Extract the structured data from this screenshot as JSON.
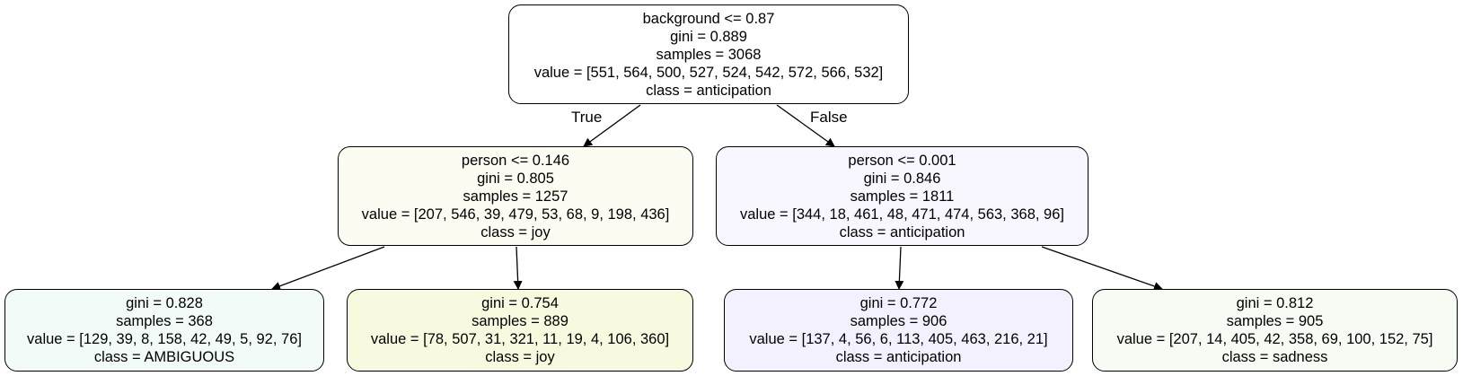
{
  "nodes": {
    "root": {
      "split": "background <= 0.87",
      "gini": "gini = 0.889",
      "samples": "samples = 3068",
      "value": "value = [551, 564, 500, 527, 524, 542, 572, 566, 532]",
      "class": "class = anticipation",
      "fill": "#ffffff"
    },
    "left": {
      "split": "person <= 0.146",
      "gini": "gini = 0.805",
      "samples": "samples = 1257",
      "value": "value = [207, 546, 39, 479, 53, 68, 9, 198, 436]",
      "class": "class = joy",
      "fill": "#fcfcf3"
    },
    "right": {
      "split": "person <= 0.001",
      "gini": "gini = 0.846",
      "samples": "samples = 1811",
      "value": "value = [344, 18, 461, 48, 471, 474, 563, 368, 96]",
      "class": "class = anticipation",
      "fill": "#f8f6fe"
    },
    "leaf_ll": {
      "gini": "gini = 0.828",
      "samples": "samples = 368",
      "value": "value = [129, 39, 8, 158, 42, 49, 5, 92, 76]",
      "class": "class = AMBIGUOUS",
      "fill": "#f2fbf7"
    },
    "leaf_lr": {
      "gini": "gini = 0.754",
      "samples": "samples = 889",
      "value": "value = [78, 507, 31, 321, 11, 19, 4, 106, 360]",
      "class": "class = joy",
      "fill": "#f8fae0"
    },
    "leaf_rl": {
      "gini": "gini = 0.772",
      "samples": "samples = 906",
      "value": "value = [137, 4, 56, 6, 113, 405, 463, 216, 21]",
      "class": "class = anticipation",
      "fill": "#f3f1fd"
    },
    "leaf_rr": {
      "gini": "gini = 0.812",
      "samples": "samples = 905",
      "value": "value = [207, 14, 405, 42, 358, 69, 100, 152, 75]",
      "class": "class = sadness",
      "fill": "#f6fcf3"
    }
  },
  "edge_labels": {
    "true": "True",
    "false": "False"
  },
  "colors": {
    "border": "#000000",
    "edge": "#000000"
  }
}
